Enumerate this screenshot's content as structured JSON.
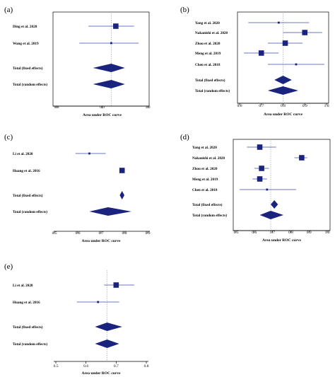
{
  "figure": {
    "colors": {
      "marker": "#1a237e",
      "ci_line": "#3949ab",
      "axis": "#000000",
      "ref_line": "#999999"
    }
  },
  "chart_data": [
    {
      "panel": "(a)",
      "type": "forest",
      "xlabel": "Area under ROC curve",
      "xlim": [
        0.8,
        1.0
      ],
      "xticks": [
        "0.8",
        "0.9",
        "1.0"
      ],
      "studies": [
        {
          "label": "Ding et al. 2020",
          "auc": 0.93,
          "ci": [
            0.87,
            0.97
          ],
          "weight": "large"
        },
        {
          "label": "Wang et al. 2019",
          "auc": 0.92,
          "ci": [
            0.85,
            0.98
          ],
          "weight": "small"
        }
      ],
      "pooled": [
        {
          "label": "Total (fixed effects)",
          "auc": 0.92,
          "ci": [
            0.88,
            0.95
          ]
        },
        {
          "label": "Total (random effects)",
          "auc": 0.92,
          "ci": [
            0.88,
            0.95
          ]
        }
      ],
      "reference_line": 0.92,
      "box": true
    },
    {
      "panel": "(b)",
      "type": "forest",
      "xlabel": "Area under ROC curve",
      "xlim": [
        0.6,
        1.0
      ],
      "xticks": [
        "0.6",
        "0.7",
        "0.8",
        "0.9",
        "1.0"
      ],
      "studies": [
        {
          "label": "Yang et al. 2020",
          "auc": 0.78,
          "ci": [
            0.64,
            0.92
          ],
          "weight": "small"
        },
        {
          "label": "Nakanishi et al. 2020",
          "auc": 0.9,
          "ci": [
            0.8,
            0.98
          ],
          "weight": "large"
        },
        {
          "label": "Zhou et al. 2020",
          "auc": 0.81,
          "ci": [
            0.73,
            0.89
          ],
          "weight": "large"
        },
        {
          "label": "Meng et al. 2019",
          "auc": 0.7,
          "ci": [
            0.62,
            0.78
          ],
          "weight": "large"
        },
        {
          "label": "Chen et al. 2018",
          "auc": 0.86,
          "ci": [
            0.73,
            0.99
          ],
          "weight": "small"
        }
      ],
      "pooled": [
        {
          "label": "Total (fixed effects)",
          "auc": 0.8,
          "ci": [
            0.76,
            0.84
          ]
        },
        {
          "label": "Total (random effects)",
          "auc": 0.8,
          "ci": [
            0.73,
            0.87
          ]
        }
      ],
      "reference_line": 0.8,
      "box": true
    },
    {
      "panel": "(c)",
      "type": "forest",
      "xlabel": "Area under ROC curve",
      "xlim": [
        0.5,
        0.9
      ],
      "xticks": [
        "0.5",
        "0.6",
        "0.7",
        "0.8",
        "0.9"
      ],
      "studies": [
        {
          "label": "Li et al. 2020",
          "auc": 0.65,
          "ci": [
            0.59,
            0.72
          ],
          "weight": "small"
        },
        {
          "label": "Huang et al. 2016",
          "auc": 0.79,
          "ci": [
            0.78,
            0.8
          ],
          "weight": "large"
        }
      ],
      "pooled": [
        {
          "label": "Total (fixed effects)",
          "auc": 0.79,
          "ci": [
            0.78,
            0.8
          ]
        },
        {
          "label": "Total (random effects)",
          "auc": 0.73,
          "ci": [
            0.65,
            0.83
          ]
        }
      ],
      "reference_line": null,
      "box": false
    },
    {
      "panel": "(d)",
      "type": "forest",
      "xlabel": "Area under ROC curve",
      "xlim": [
        0.5,
        1.0
      ],
      "xticks": [
        "0.5",
        "0.6",
        "0.7",
        "0.8",
        "0.9",
        "1.0"
      ],
      "studies": [
        {
          "label": "Yang et al. 2020",
          "auc": 0.63,
          "ci": [
            0.56,
            0.72
          ],
          "weight": "large"
        },
        {
          "label": "Nakanishi et al. 2020",
          "auc": 0.86,
          "ci": [
            0.82,
            0.89
          ],
          "weight": "large"
        },
        {
          "label": "Zhou et al. 2020",
          "auc": 0.64,
          "ci": [
            0.6,
            0.68
          ],
          "weight": "large"
        },
        {
          "label": "Meng et al. 2019",
          "auc": 0.63,
          "ci": [
            0.59,
            0.67
          ],
          "weight": "large"
        },
        {
          "label": "Chen et al. 2018",
          "auc": 0.67,
          "ci": [
            0.52,
            0.83
          ],
          "weight": "small"
        }
      ],
      "pooled": [
        {
          "label": "Total (fixed effects)",
          "auc": 0.71,
          "ci": [
            0.69,
            0.73
          ]
        },
        {
          "label": "Total (random effects)",
          "auc": 0.69,
          "ci": [
            0.63,
            0.76
          ]
        }
      ],
      "reference_line": 0.69,
      "box": true
    },
    {
      "panel": "(e)",
      "type": "forest",
      "xlabel": "Area under ROC curve",
      "xlim": [
        0.5,
        0.8
      ],
      "xticks": [
        "0.5",
        "0.6",
        "0.7",
        "0.8"
      ],
      "studies": [
        {
          "label": "Li et al. 2020",
          "auc": 0.7,
          "ci": [
            0.66,
            0.76
          ],
          "weight": "large"
        },
        {
          "label": "Huang et al. 2016",
          "auc": 0.64,
          "ci": [
            0.57,
            0.71
          ],
          "weight": "small"
        }
      ],
      "pooled": [
        {
          "label": "Total (fixed effects)",
          "auc": 0.67,
          "ci": [
            0.63,
            0.72
          ]
        },
        {
          "label": "Total (random effects)",
          "auc": 0.67,
          "ci": [
            0.63,
            0.71
          ]
        }
      ],
      "reference_line": 0.67,
      "box": false
    }
  ]
}
